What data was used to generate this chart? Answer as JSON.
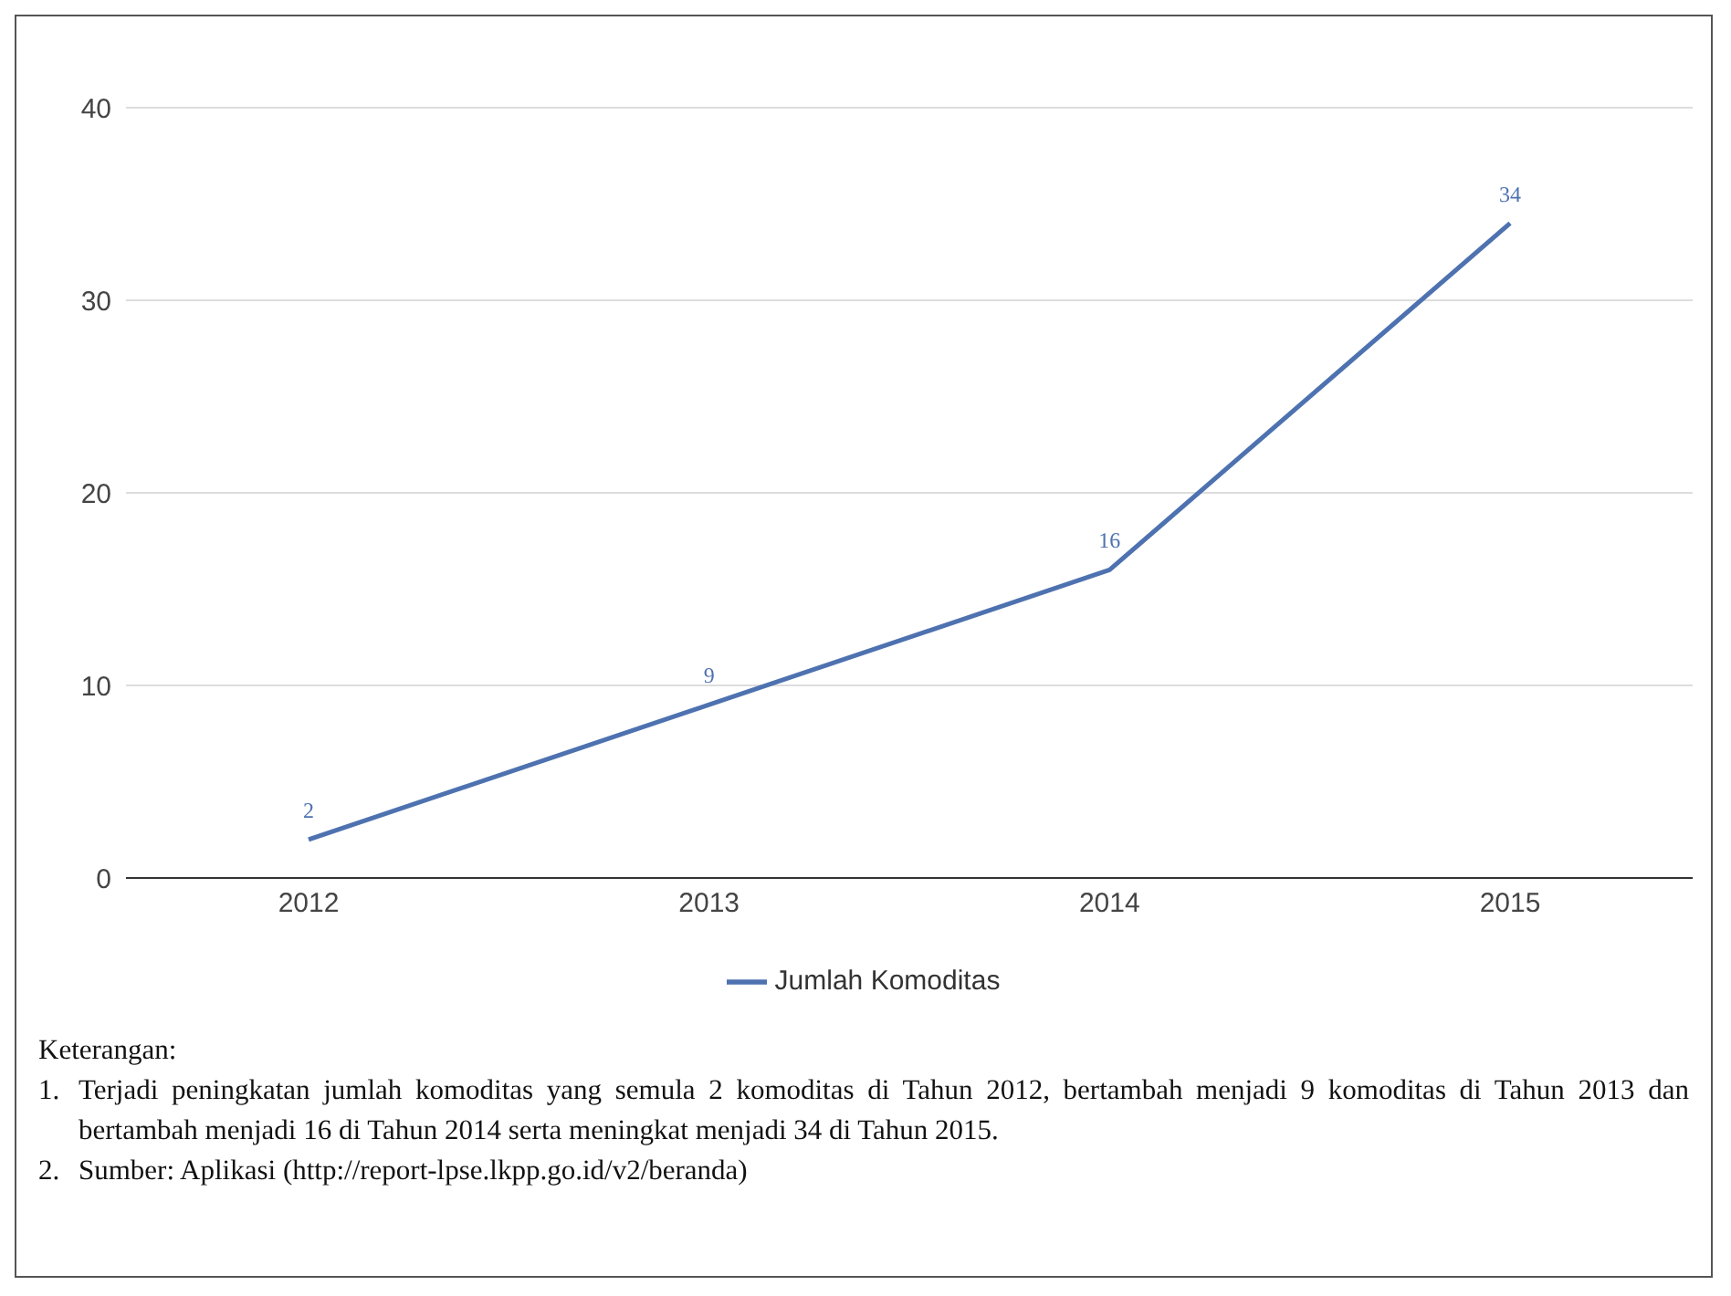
{
  "chart_data": {
    "type": "line",
    "categories": [
      "2012",
      "2013",
      "2014",
      "2015"
    ],
    "series": [
      {
        "name": "Jumlah Komoditas",
        "color": "#4e72b0",
        "values": [
          2,
          9,
          16,
          34
        ]
      }
    ],
    "ylim": [
      0,
      40
    ],
    "yticks": [
      0,
      10,
      20,
      30,
      40
    ],
    "grid": "y",
    "legend": "bottom",
    "marker": "none",
    "data_labels": true,
    "annotations": [
      "Keterangan:",
      "1. Terjadi peningkatan jumlah komoditas yang semula 2 komoditas di Tahun 2012, bertambah menjadi 9 komoditas di Tahun 2013 dan bertambah menjadi 16 di Tahun 2014 serta meningkat menjadi 34 di Tahun 2015.",
      "2. Sumber: Aplikasi (http://report-lpse.lkpp.go.id/v2/beranda)"
    ]
  }
}
